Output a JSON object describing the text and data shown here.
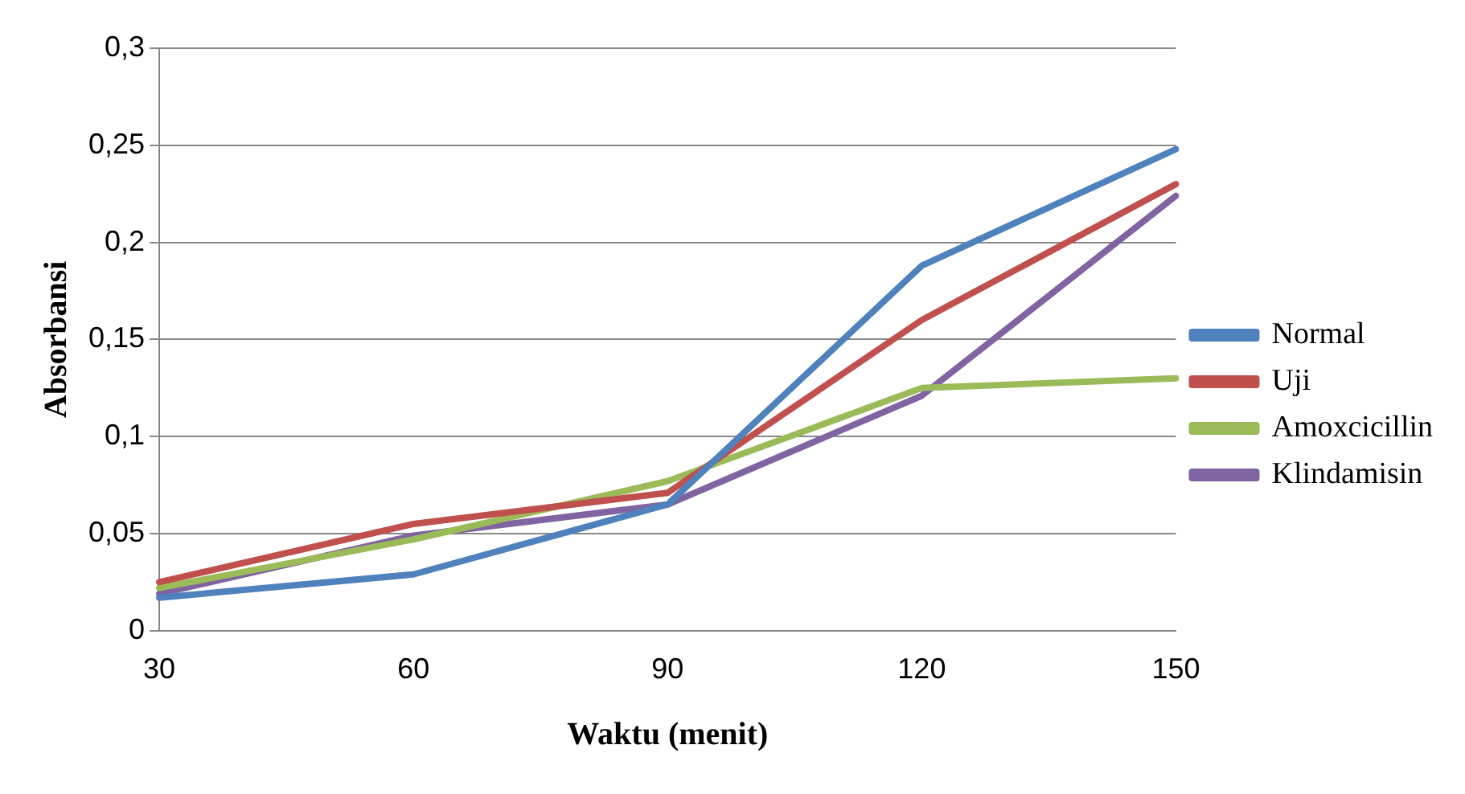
{
  "chart_data": {
    "type": "line",
    "xlabel": "Waktu (menit)",
    "ylabel": "Absorbansi",
    "categories": [
      "30",
      "60",
      "90",
      "120",
      "150"
    ],
    "series": [
      {
        "name": "Normal",
        "color": "#4f81bd",
        "values": [
          0.017,
          0.029,
          0.065,
          0.188,
          0.248
        ]
      },
      {
        "name": "Uji",
        "color": "#c0504d",
        "values": [
          0.025,
          0.055,
          0.071,
          0.16,
          0.23
        ]
      },
      {
        "name": "Amoxcicillin",
        "color": "#9bbb59",
        "values": [
          0.022,
          0.047,
          0.077,
          0.125,
          0.13
        ]
      },
      {
        "name": "Klindamisin",
        "color": "#8064a2",
        "values": [
          0.019,
          0.049,
          0.065,
          0.121,
          0.224
        ]
      }
    ],
    "ylim": [
      0,
      0.3
    ],
    "yticks": [
      0,
      {
        "value": 0.05,
        "label": "0,05"
      },
      {
        "value": 0.1,
        "label": "0,1"
      },
      {
        "value": 0.15,
        "label": "0,15"
      },
      {
        "value": 0.2,
        "label": "0,2"
      },
      {
        "value": 0.25,
        "label": "0,25"
      },
      {
        "value": 0.3,
        "label": "0,3"
      }
    ],
    "grid": "y",
    "legend": "right",
    "marker": "none",
    "line_style": "solid"
  }
}
